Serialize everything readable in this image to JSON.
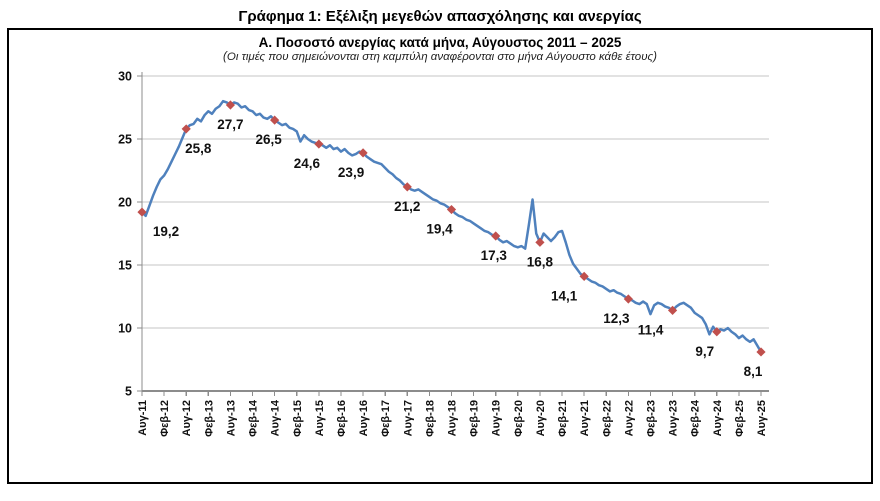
{
  "page": {
    "title": "Γράφημα 1: Εξέλιξη μεγεθών απασχόλησης και ανεργίας"
  },
  "panel": {
    "title": "Α. Ποσοστό ανεργίας κατά μήνα, Αύγουστος 2011 – 2025",
    "subtitle": "(Οι τιμές που σημειώνονται στη καμπύλη αναφέρονται στο μήνα Αύγουστο κάθε έτους)"
  },
  "chart_data": {
    "type": "line",
    "title": "Α. Ποσοστό ανεργίας κατά μήνα, Αύγουστος 2011 – 2025",
    "subtitle": "(Οι τιμές που σημειώνονται στη καμπύλη αναφέρονται στο μήνα Αύγουστο κάθε έτους)",
    "ylabel": "",
    "xlabel": "",
    "ylim": [
      5,
      30
    ],
    "y_ticks": [
      5,
      10,
      15,
      20,
      25,
      30
    ],
    "grid": true,
    "legend": "none",
    "x_tick_every": 6,
    "x_tick_labels": [
      "Αυγ-11",
      "Φεβ-12",
      "Αυγ-12",
      "Φεβ-13",
      "Αυγ-13",
      "Φεβ-14",
      "Αυγ-14",
      "Φεβ-15",
      "Αυγ-15",
      "Φεβ-16",
      "Αυγ-16",
      "Φεβ-17",
      "Αυγ-17",
      "Φεβ-18",
      "Αυγ-18",
      "Φεβ-19",
      "Αυγ-19",
      "Φεβ-20",
      "Αυγ-20",
      "Φεβ-21",
      "Αυγ-21",
      "Φεβ-22",
      "Αυγ-22",
      "Φεβ-23",
      "Αυγ-23",
      "Φεβ-24",
      "Αυγ-24",
      "Φεβ-25",
      "Αυγ-25"
    ],
    "series": [
      {
        "name": "Ποσοστό ανεργίας (%)",
        "color": "#4F81BD",
        "values": [
          19.2,
          18.9,
          19.7,
          20.5,
          21.2,
          21.8,
          22.1,
          22.6,
          23.2,
          23.8,
          24.4,
          25.1,
          25.8,
          26.1,
          26.2,
          26.6,
          26.4,
          26.9,
          27.2,
          27.0,
          27.4,
          27.6,
          28.0,
          27.9,
          27.7,
          27.9,
          27.8,
          27.5,
          27.6,
          27.3,
          27.2,
          26.9,
          27.0,
          26.7,
          26.6,
          26.8,
          26.5,
          26.3,
          26.1,
          26.2,
          25.9,
          25.8,
          25.6,
          24.8,
          25.3,
          25.0,
          24.8,
          24.7,
          24.6,
          24.5,
          24.3,
          24.5,
          24.2,
          24.3,
          24.0,
          24.2,
          23.9,
          23.7,
          23.8,
          24.0,
          23.9,
          23.6,
          23.4,
          23.2,
          23.1,
          23.0,
          22.7,
          22.4,
          22.2,
          21.9,
          21.7,
          21.4,
          21.2,
          21.0,
          20.9,
          21.0,
          20.8,
          20.6,
          20.4,
          20.2,
          20.1,
          19.9,
          19.8,
          19.6,
          19.4,
          19.1,
          18.9,
          18.8,
          18.6,
          18.5,
          18.3,
          18.1,
          17.9,
          17.7,
          17.6,
          17.4,
          17.3,
          17.0,
          16.8,
          16.9,
          16.7,
          16.5,
          16.4,
          16.5,
          16.3,
          18.2,
          20.2,
          17.5,
          16.8,
          17.5,
          17.2,
          16.9,
          17.2,
          17.6,
          17.7,
          16.8,
          15.8,
          15.1,
          14.7,
          14.3,
          14.1,
          13.9,
          13.7,
          13.6,
          13.4,
          13.3,
          13.1,
          12.9,
          13.0,
          12.8,
          12.7,
          12.5,
          12.3,
          12.2,
          12.0,
          11.9,
          12.1,
          11.9,
          11.1,
          11.8,
          12.0,
          11.9,
          11.7,
          11.6,
          11.4,
          11.7,
          11.9,
          12.0,
          11.8,
          11.6,
          11.2,
          11.0,
          10.8,
          10.3,
          9.5,
          10.1,
          9.7,
          9.9,
          9.8,
          10.0,
          9.7,
          9.5,
          9.2,
          9.4,
          9.1,
          8.9,
          9.1,
          8.6,
          8.1
        ]
      }
    ],
    "marker_color": "#C0504D",
    "annotations": [
      {
        "x_index": 0,
        "x_label": "Αυγ-11",
        "value": 19.2,
        "label": "19,2",
        "dx": 24
      },
      {
        "x_index": 12,
        "x_label": "Αυγ-12",
        "value": 25.8,
        "label": "25,8",
        "dx": 12
      },
      {
        "x_index": 24,
        "x_label": "Αυγ-13",
        "value": 27.7,
        "label": "27,7",
        "dx": 0
      },
      {
        "x_index": 36,
        "x_label": "Αυγ-14",
        "value": 26.5,
        "label": "26,5",
        "dx": -6
      },
      {
        "x_index": 48,
        "x_label": "Αυγ-15",
        "value": 24.6,
        "label": "24,6",
        "dx": -12
      },
      {
        "x_index": 60,
        "x_label": "Αυγ-16",
        "value": 23.9,
        "label": "23,9",
        "dx": -12
      },
      {
        "x_index": 72,
        "x_label": "Αυγ-17",
        "value": 21.2,
        "label": "21,2",
        "dx": 0
      },
      {
        "x_index": 84,
        "x_label": "Αυγ-18",
        "value": 19.4,
        "label": "19,4",
        "dx": -12
      },
      {
        "x_index": 96,
        "x_label": "Αυγ-19",
        "value": 17.3,
        "label": "17,3",
        "dx": -2
      },
      {
        "x_index": 108,
        "x_label": "Αυγ-20",
        "value": 16.8,
        "label": "16,8",
        "dx": 0
      },
      {
        "x_index": 120,
        "x_label": "Αυγ-21",
        "value": 14.1,
        "label": "14,1",
        "dx": -20
      },
      {
        "x_index": 132,
        "x_label": "Αυγ-22",
        "value": 12.3,
        "label": "12,3",
        "dx": -12
      },
      {
        "x_index": 144,
        "x_label": "Αυγ-23",
        "value": 11.4,
        "label": "11,4",
        "dx": -22
      },
      {
        "x_index": 156,
        "x_label": "Αυγ-24",
        "value": 9.7,
        "label": "9,7",
        "dx": -12
      },
      {
        "x_index": 168,
        "x_label": "Αυγ-25",
        "value": 8.1,
        "label": "8,1",
        "dx": -8
      }
    ],
    "colors": {
      "line": "#4F81BD",
      "marker": "#C0504D",
      "gridline": "#C6C6C6",
      "axis": "#8C8C8C",
      "text": "#111111",
      "panel_border": "#000000"
    }
  }
}
